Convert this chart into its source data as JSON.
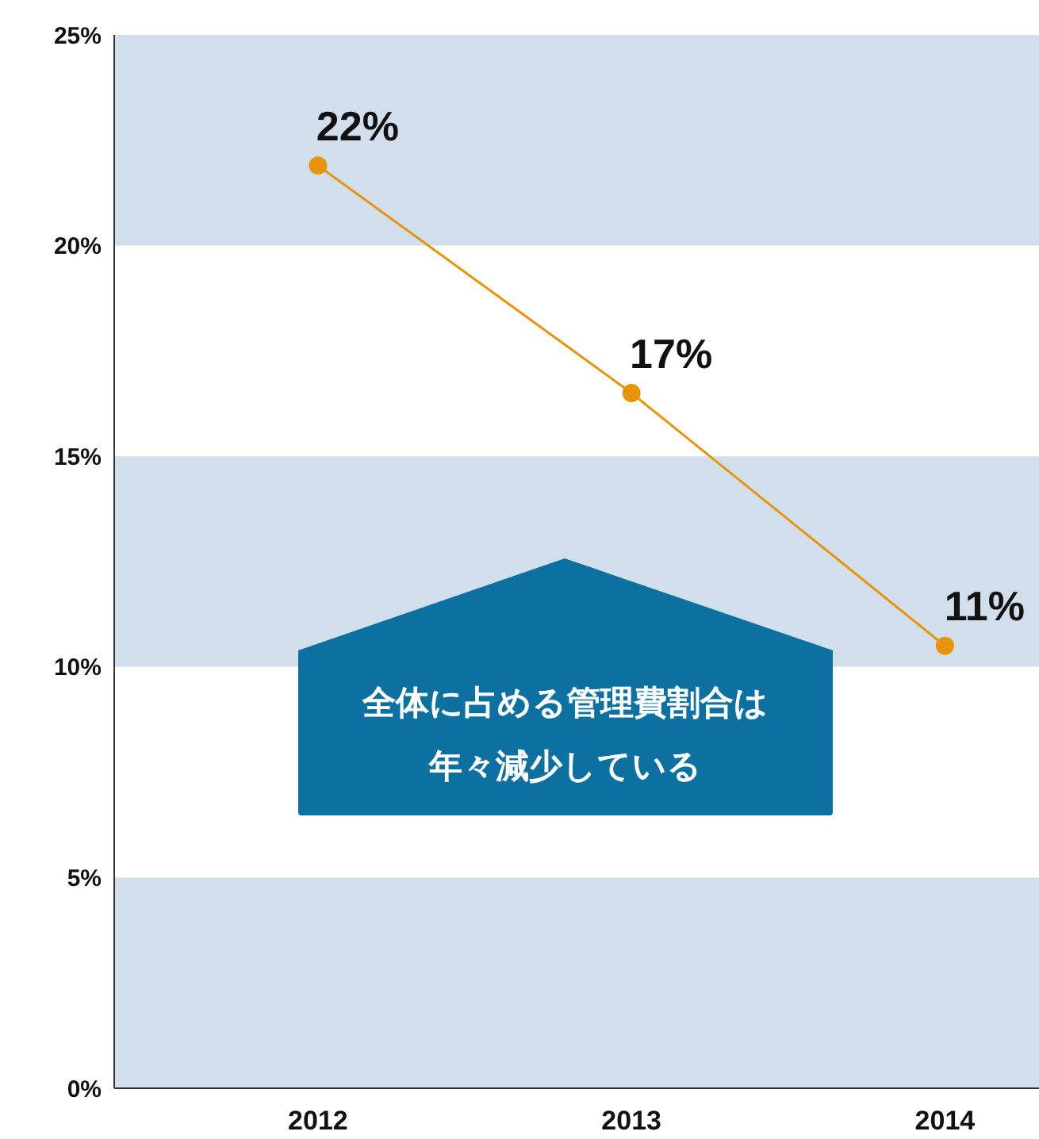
{
  "chart_data": {
    "type": "line",
    "categories": [
      "2012",
      "2013",
      "2014"
    ],
    "series": [
      {
        "color": "#e8940a",
        "values": [
          21.9,
          16.5,
          10.5
        ],
        "value_labels": [
          "22%",
          "17%",
          "11%"
        ]
      }
    ],
    "ylim": [
      0,
      25
    ],
    "yticks": [
      {
        "value": 0,
        "label": "0%"
      },
      {
        "value": 5,
        "label": "5%"
      },
      {
        "value": 10,
        "label": "10%"
      },
      {
        "value": 15,
        "label": "15%"
      },
      {
        "value": 20,
        "label": "20%"
      },
      {
        "value": 25,
        "label": "25%"
      }
    ],
    "bands": [
      {
        "axis": "y",
        "from": 0,
        "to": 5,
        "color": "#d0dfeb"
      },
      {
        "axis": "y",
        "from": 10,
        "to": 15,
        "color": "#d0dfeb"
      },
      {
        "axis": "y",
        "from": 20,
        "to": 25,
        "color": "#d0dfeb"
      }
    ],
    "grid": false,
    "legend": false,
    "marker": "circle",
    "line_style": "solid",
    "annotations": [
      "全体に占める管理費割合は年々減少している"
    ]
  }
}
